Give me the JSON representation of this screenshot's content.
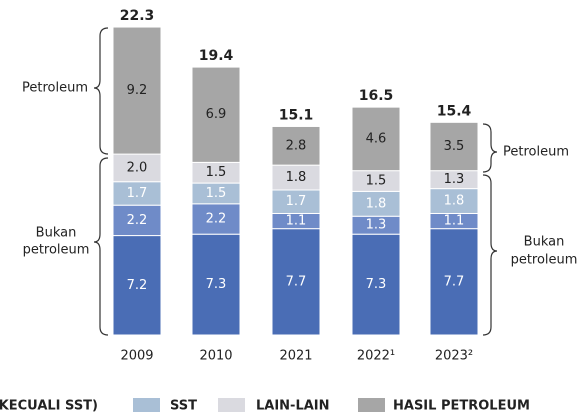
{
  "chart_data": {
    "type": "stacked_bar",
    "categories": [
      "2009",
      "2010",
      "2021",
      "2022¹",
      "2023²"
    ],
    "series": [
      {
        "color": "#4a6db5",
        "values": [
          7.2,
          7.3,
          7.7,
          7.3,
          7.7
        ]
      },
      {
        "name": "(KECUALI SST)",
        "color": "#6f8bc8",
        "values": [
          2.2,
          2.2,
          1.1,
          1.3,
          1.1
        ]
      },
      {
        "name": "SST",
        "color": "#a9bfd6",
        "values": [
          1.7,
          1.5,
          1.7,
          1.8,
          1.8
        ]
      },
      {
        "name": "LAIN-LAIN",
        "color": "#dadae0",
        "values": [
          2.0,
          1.5,
          1.8,
          1.5,
          1.3
        ],
        "value_labels": [
          "2.0",
          "1.5",
          "1.8",
          "1.5",
          "1.3"
        ]
      },
      {
        "name": "HASIL PETROLEUM",
        "color": "#a6a6a6",
        "values": [
          9.2,
          6.9,
          2.8,
          4.6,
          3.5
        ]
      }
    ],
    "totals": [
      22.3,
      19.4,
      15.1,
      16.5,
      15.4
    ],
    "annotations": {
      "left_petroleum": "Petroleum",
      "left_non_1": "Bukan",
      "left_non_2": "petroleum",
      "right_petroleum": "Petroleum",
      "right_non_1": "Bukan",
      "right_non_2": "petroleum"
    }
  }
}
